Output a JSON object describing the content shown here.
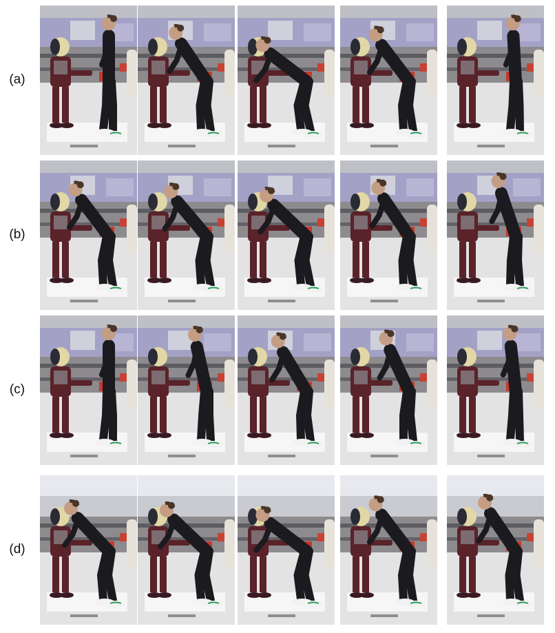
{
  "rows": [
    {
      "label": "(a)",
      "poses": [
        0.0,
        0.55,
        0.85,
        0.6,
        0.05
      ]
    },
    {
      "label": "(b)",
      "poses": [
        0.6,
        0.65,
        0.75,
        0.55,
        0.3
      ]
    },
    {
      "label": "(c)",
      "poses": [
        0.0,
        0.2,
        0.5,
        0.4,
        0.1
      ]
    },
    {
      "label": "(d)",
      "poses": [
        0.7,
        0.75,
        0.85,
        0.6,
        0.55
      ]
    }
  ],
  "colors": {
    "monitor": "#a4a1c6",
    "floor": "#e3e3e4",
    "suit": "#1b1b1f",
    "robot_body": "#5a2229",
    "robot_head": "#e2d7a6",
    "shoe_accent": "#2e9b5a"
  }
}
